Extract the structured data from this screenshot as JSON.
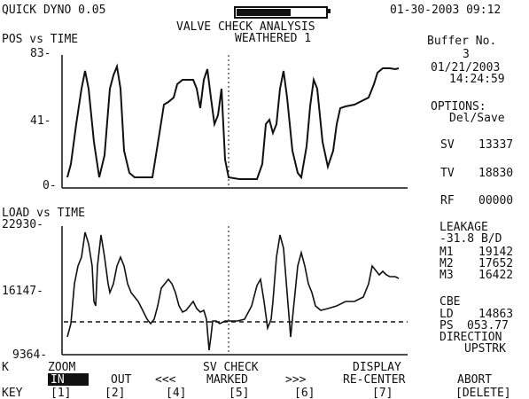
{
  "header": {
    "app": "QUICK DYNO 0.05",
    "progress": 0.62,
    "datetime": "01-30-2003 09:12",
    "analysis_line1": "VALVE CHECK ANALYSIS",
    "analysis_line2": "WEATHERED 1"
  },
  "pos_plot": {
    "title": "POS vs TIME",
    "yticks": [
      "83-",
      "41-",
      "0-"
    ]
  },
  "load_plot": {
    "title": "LOAD vs TIME",
    "yticks": [
      "22930-",
      "16147-",
      "9364-"
    ]
  },
  "panel": {
    "buffer_label": "Buffer No.",
    "buffer_no": "3",
    "date": "01/21/2003",
    "time": "14:24:59",
    "options_label": "OPTIONS:",
    "options_value": "Del/Save",
    "sv_label": "SV",
    "sv_value": "13337",
    "tv_label": "TV",
    "tv_value": "18830",
    "rf_label": "RF",
    "rf_value": "00000",
    "leakage_label": "LEAKAGE",
    "leakage_value": "-31.8 B/D",
    "m1_label": "M1",
    "m1_value": "19142",
    "m2_label": "M2",
    "m2_value": "17652",
    "m3_label": "M3",
    "m3_value": "16422",
    "cbe_label": "CBE",
    "ld_label": "LD",
    "ld_value": "14863",
    "ps_label": "PS",
    "ps_value": "053.77",
    "direction_label": "DIRECTION",
    "direction_value": "UPSTRK"
  },
  "footer": {
    "k_label": "K",
    "zoom_label": "ZOOM",
    "sv_check_label": "SV CHECK",
    "display_label": "DISPLAY",
    "in_label": "IN",
    "out_label": "OUT",
    "left_arrows": "<<<",
    "marked_label": "MARKED",
    "right_arrows": ">>>",
    "recenter_label": "RE-CENTER",
    "abort_label": "ABORT",
    "key_label": "KEY",
    "key1": "[1]",
    "key2": "[2]",
    "key4": "[4]",
    "key5": "[5]",
    "key6": "[6]",
    "key7": "[7]",
    "key_delete": "[DELETE]"
  }
}
